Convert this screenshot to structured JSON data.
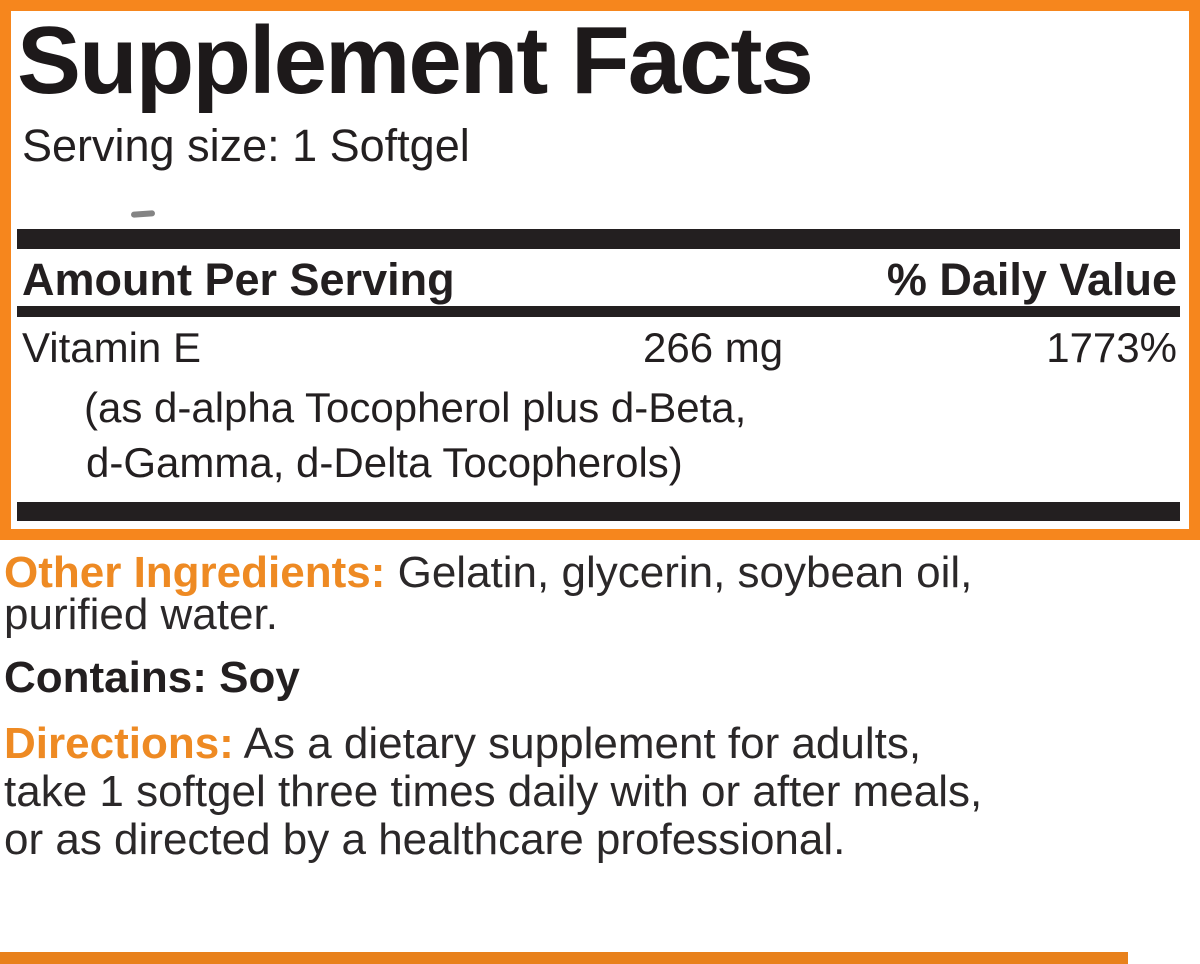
{
  "colors": {
    "accent_orange_border": "#F6861D",
    "section_label_orange": "#EE8A23",
    "ink_black": "#231F20",
    "bottom_strip_orange": "#E8811C"
  },
  "supplement_facts": {
    "title": "Supplement Facts",
    "serving_size": "Serving size: 1 Softgel",
    "columns": {
      "amount_per_serving": "Amount Per Serving",
      "percent_daily_value": "% Daily Value"
    },
    "rows": [
      {
        "name": "Vitamin E",
        "amount": "266 mg",
        "daily_value": "1773%",
        "detail_lines": [
          "(as d-alpha Tocopherol plus d-Beta,",
          "d-Gamma, d-Delta Tocopherols)"
        ]
      }
    ]
  },
  "other_ingredients": {
    "label": "Other Ingredients:",
    "text_line_1": "Gelatin, glycerin, soybean oil,",
    "text_line_2": "purified water."
  },
  "contains": {
    "text": "Contains: Soy"
  },
  "directions": {
    "label": "Directions:",
    "text_line_1": "As a dietary supplement for adults,",
    "text_line_2": "take 1 softgel three times daily with or after meals,",
    "text_line_3": "or as directed by a healthcare professional."
  }
}
